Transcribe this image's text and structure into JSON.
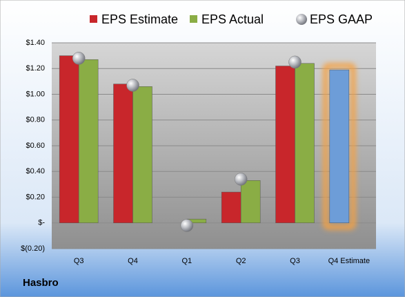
{
  "chart_data": {
    "type": "bar",
    "company": "Hasbro",
    "categories": [
      "Q3",
      "Q4",
      "Q1",
      "Q2",
      "Q3",
      "Q4 Estimate"
    ],
    "series": [
      {
        "name": "EPS Estimate",
        "color": "#c8262b",
        "values": [
          1.3,
          1.08,
          null,
          0.24,
          1.22,
          1.19
        ]
      },
      {
        "name": "EPS Actual",
        "color": "#8aad45",
        "values": [
          1.27,
          1.06,
          0.03,
          0.33,
          1.24,
          null
        ]
      },
      {
        "name": "EPS GAAP",
        "color": "#b4b6bd",
        "marker": "sphere",
        "values": [
          1.28,
          1.07,
          -0.02,
          0.34,
          1.25,
          null
        ]
      }
    ],
    "highlight": {
      "series": 0,
      "index": 5,
      "color": "#6d9dd8",
      "glow": "#f5a142"
    },
    "ylim": [
      -0.2,
      1.4
    ],
    "yticks": [
      {
        "value": -0.2,
        "label": "$(0.20)"
      },
      {
        "value": 0,
        "label": "$-"
      },
      {
        "value": 0.2,
        "label": "$0.20"
      },
      {
        "value": 0.4,
        "label": "$0.40"
      },
      {
        "value": 0.6,
        "label": "$0.60"
      },
      {
        "value": 0.8,
        "label": "$0.80"
      },
      {
        "value": 1.0,
        "label": "$1.00"
      },
      {
        "value": 1.2,
        "label": "$1.20"
      },
      {
        "value": 1.4,
        "label": "$1.40"
      }
    ],
    "grid": true
  }
}
